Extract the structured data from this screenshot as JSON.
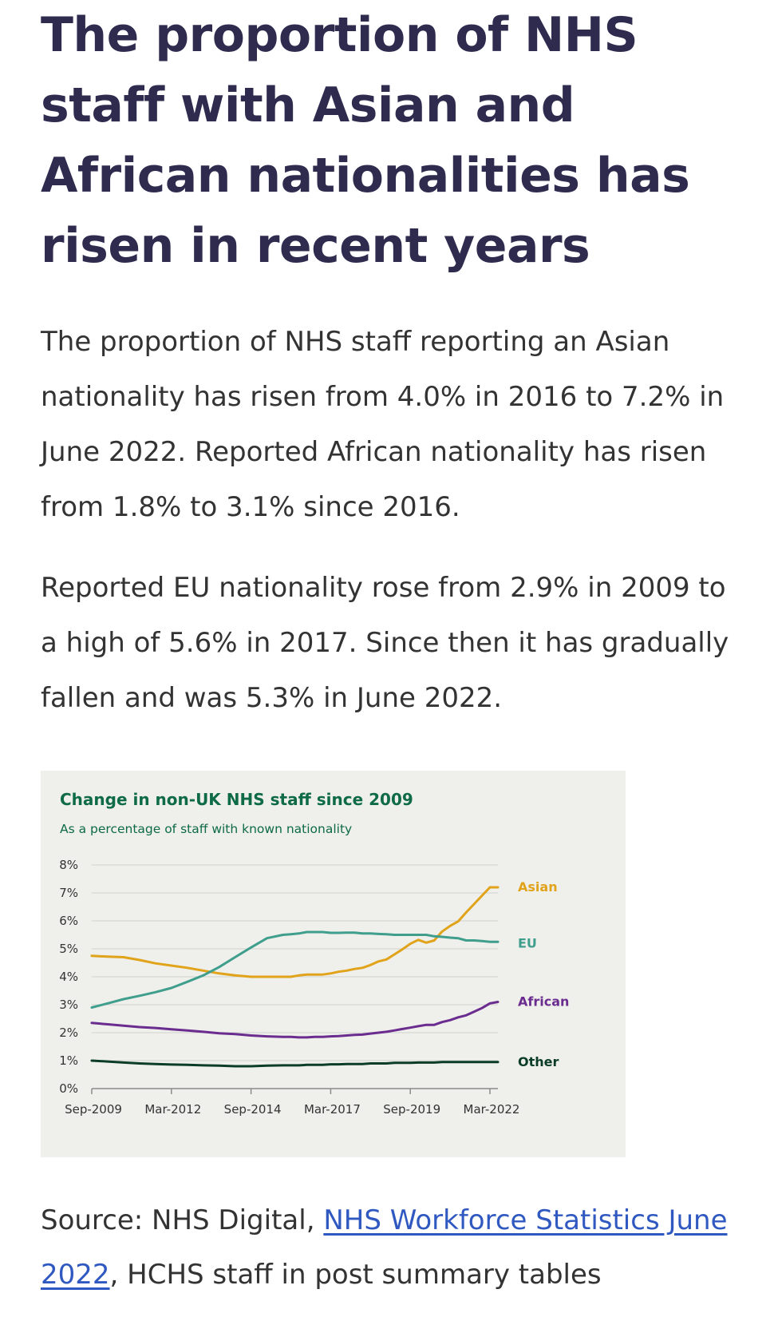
{
  "heading": "The proportion of NHS staff with Asian and African nationalities has risen in recent years",
  "paragraphs": [
    "The proportion of NHS staff reporting an Asian nationality has risen from 4.0% in 2016 to 7.2% in June 2022. Reported African nationality has risen from 1.8% to 3.1% since 2016.",
    "Reported EU nationality rose from 2.9% in 2009 to a high of 5.6% in 2017. Since then it has gradually fallen and was 5.3% in June 2022."
  ],
  "source": {
    "prefix": "Source: NHS Digital,",
    "link_text": "NHS Workforce Statistics June 2022",
    "suffix": ", HCHS staff in post summary tables"
  },
  "colors": {
    "heading": "#2e2b4e",
    "chart_background": "#efefec",
    "chart_title": "#0e6b46",
    "link": "#2f58c0"
  },
  "chart_data": {
    "type": "line",
    "title": "Change in non-UK NHS staff since 2009",
    "subtitle": "As a percentage of staff with known nationality",
    "xlabel": "",
    "ylabel": "",
    "x": [
      2009.75,
      2010.25,
      2010.75,
      2011.25,
      2011.75,
      2012.25,
      2012.75,
      2013.25,
      2013.75,
      2014.25,
      2014.75,
      2015.25,
      2015.75,
      2016.0,
      2016.25,
      2016.5,
      2016.75,
      2017.0,
      2017.25,
      2017.5,
      2017.75,
      2018.0,
      2018.25,
      2018.5,
      2018.75,
      2019.0,
      2019.25,
      2019.5,
      2019.75,
      2020.0,
      2020.25,
      2020.5,
      2020.75,
      2021.0,
      2021.25,
      2021.5,
      2021.75,
      2022.0,
      2022.25,
      2022.5
    ],
    "x_ticks": [
      {
        "value": 2009.75,
        "label": "Sep-2009"
      },
      {
        "value": 2012.25,
        "label": "Mar-2012"
      },
      {
        "value": 2014.75,
        "label": "Sep-2014"
      },
      {
        "value": 2017.25,
        "label": "Mar-2017"
      },
      {
        "value": 2019.75,
        "label": "Sep-2019"
      },
      {
        "value": 2022.25,
        "label": "Mar-2022"
      }
    ],
    "xlim": [
      2009.75,
      2022.5
    ],
    "ylim": [
      0,
      8
    ],
    "y_ticks": [
      "0%",
      "1%",
      "2%",
      "3%",
      "4%",
      "5%",
      "6%",
      "7%",
      "8%"
    ],
    "grid": true,
    "legend": "end-of-line labels",
    "series": [
      {
        "name": "Asian",
        "color": "#e0a31a",
        "values": [
          4.75,
          4.72,
          4.7,
          4.6,
          4.48,
          4.4,
          4.32,
          4.22,
          4.12,
          4.05,
          4.0,
          4.0,
          4.0,
          4.0,
          4.05,
          4.08,
          4.08,
          4.08,
          4.12,
          4.18,
          4.22,
          4.28,
          4.32,
          4.42,
          4.55,
          4.62,
          4.8,
          4.98,
          5.18,
          5.32,
          5.22,
          5.3,
          5.62,
          5.82,
          5.98,
          6.3,
          6.6,
          6.9,
          7.2,
          7.2
        ]
      },
      {
        "name": "EU",
        "color": "#3f9e8c",
        "values": [
          2.9,
          3.05,
          3.2,
          3.32,
          3.45,
          3.6,
          3.82,
          4.05,
          4.35,
          4.7,
          5.05,
          5.38,
          5.5,
          5.52,
          5.55,
          5.6,
          5.6,
          5.6,
          5.57,
          5.57,
          5.58,
          5.58,
          5.55,
          5.55,
          5.53,
          5.52,
          5.5,
          5.5,
          5.5,
          5.5,
          5.5,
          5.45,
          5.43,
          5.4,
          5.38,
          5.3,
          5.3,
          5.28,
          5.25,
          5.25
        ]
      },
      {
        "name": "African",
        "color": "#6a2c8e",
        "values": [
          2.35,
          2.3,
          2.25,
          2.2,
          2.17,
          2.12,
          2.08,
          2.03,
          1.98,
          1.95,
          1.9,
          1.87,
          1.85,
          1.85,
          1.83,
          1.83,
          1.85,
          1.85,
          1.87,
          1.88,
          1.9,
          1.92,
          1.93,
          1.97,
          2.0,
          2.03,
          2.08,
          2.13,
          2.18,
          2.23,
          2.28,
          2.28,
          2.38,
          2.45,
          2.55,
          2.62,
          2.75,
          2.88,
          3.05,
          3.1
        ]
      },
      {
        "name": "Other",
        "color": "#0b3d26",
        "values": [
          1.0,
          0.97,
          0.93,
          0.9,
          0.88,
          0.86,
          0.85,
          0.83,
          0.82,
          0.8,
          0.8,
          0.82,
          0.83,
          0.83,
          0.83,
          0.85,
          0.85,
          0.85,
          0.87,
          0.87,
          0.88,
          0.88,
          0.88,
          0.9,
          0.9,
          0.9,
          0.92,
          0.92,
          0.92,
          0.93,
          0.93,
          0.93,
          0.95,
          0.95,
          0.95,
          0.95,
          0.95,
          0.95,
          0.95,
          0.95
        ]
      }
    ]
  }
}
